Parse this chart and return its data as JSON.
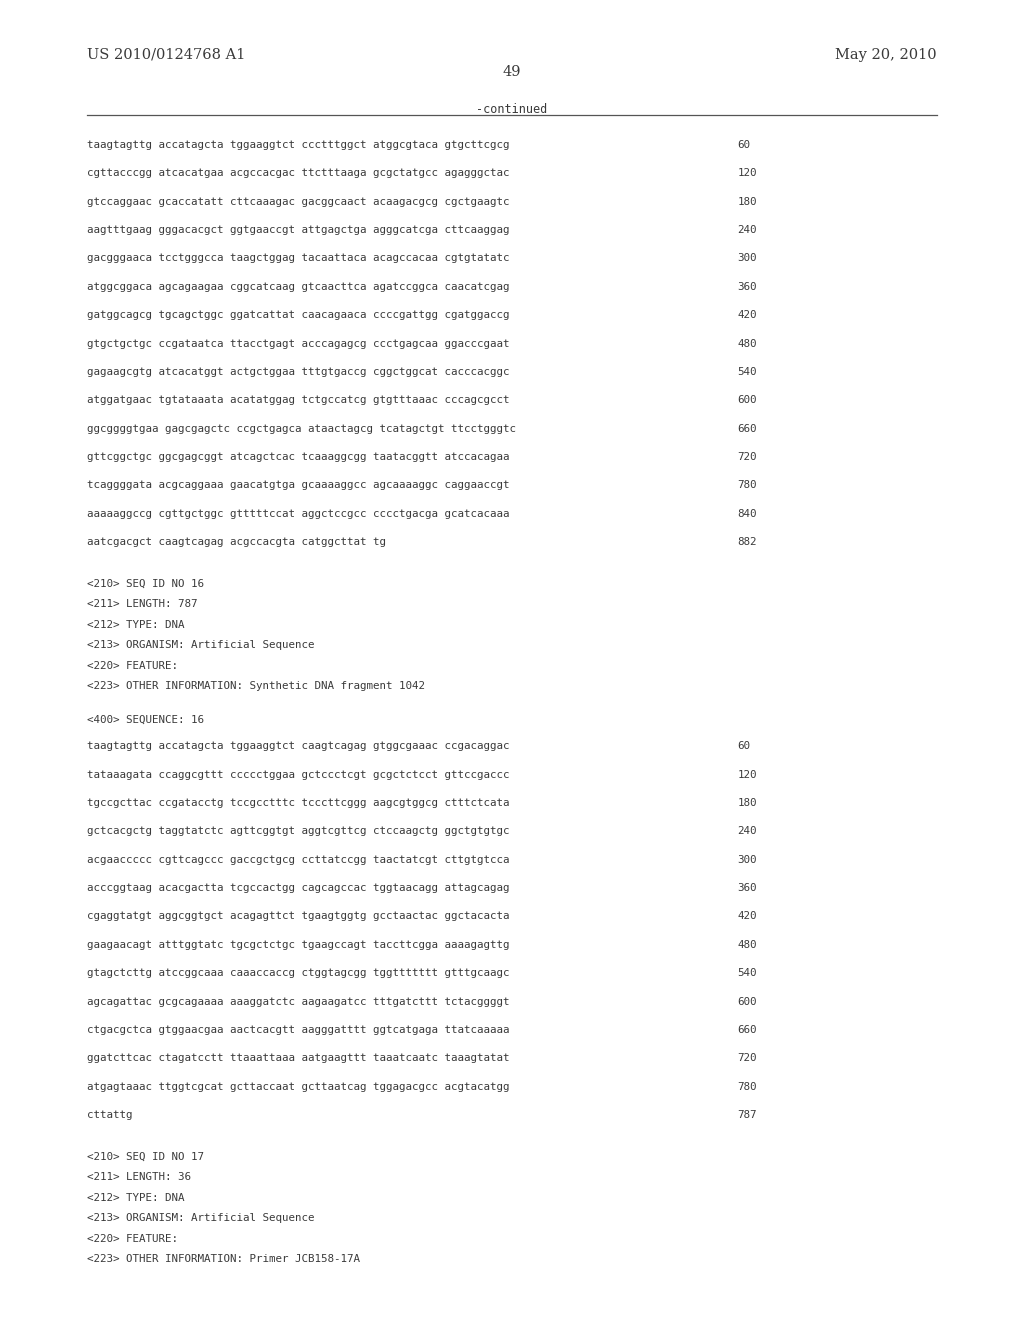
{
  "background_color": "#ffffff",
  "header_left": "US 2010/0124768 A1",
  "header_right": "May 20, 2010",
  "page_number": "49",
  "continued_text": "-continued",
  "monospace_lines_block1": [
    {
      "text": "taagtagttg accatagcta tggaaggtct ccctttggct atggcgtaca gtgcttcgcg",
      "num": "60"
    },
    {
      "text": "cgttacccgg atcacatgaa acgccacgac ttctttaaga gcgctatgcc agagggctac",
      "num": "120"
    },
    {
      "text": "gtccaggaac gcaccatatt cttcaaagac gacggcaact acaagacgcg cgctgaagtc",
      "num": "180"
    },
    {
      "text": "aagtttgaag gggacacgct ggtgaaccgt attgagctga agggcatcga cttcaaggag",
      "num": "240"
    },
    {
      "text": "gacgggaaca tcctgggcca taagctggag tacaattaca acagccacaa cgtgtatatc",
      "num": "300"
    },
    {
      "text": "atggcggaca agcagaagaa cggcatcaag gtcaacttca agatccggca caacatcgag",
      "num": "360"
    },
    {
      "text": "gatggcagcg tgcagctggc ggatcattat caacagaaca ccccgattgg cgatggaccg",
      "num": "420"
    },
    {
      "text": "gtgctgctgc ccgataatca ttacctgagt acccagagcg ccctgagcaa ggacccgaat",
      "num": "480"
    },
    {
      "text": "gagaagcgtg atcacatggt actgctggaa tttgtgaccg cggctggcat cacccacggc",
      "num": "540"
    },
    {
      "text": "atggatgaac tgtataaata acatatggag tctgccatcg gtgtttaaac cccagcgcct",
      "num": "600"
    },
    {
      "text": "ggcggggtgaa gagcgagctc ccgctgagca ataactagcg tcatagctgt ttcctgggtc",
      "num": "660"
    },
    {
      "text": "gttcggctgc ggcgagcggt atcagctcac tcaaaggcgg taatacggtt atccacagaa",
      "num": "720"
    },
    {
      "text": "tcaggggata acgcaggaaa gaacatgtga gcaaaaggcc agcaaaaggc caggaaccgt",
      "num": "780"
    },
    {
      "text": "aaaaaggccg cgttgctggc gtttttccat aggctccgcc cccctgacga gcatcacaaa",
      "num": "840"
    },
    {
      "text": "aatcgacgct caagtcagag acgccacgta catggcttat tg",
      "num": "882"
    }
  ],
  "metadata_block_1": [
    "<210> SEQ ID NO 16",
    "<211> LENGTH: 787",
    "<212> TYPE: DNA",
    "<213> ORGANISM: Artificial Sequence",
    "<220> FEATURE:",
    "<223> OTHER INFORMATION: Synthetic DNA fragment 1042"
  ],
  "seq400_1": "<400> SEQUENCE: 16",
  "monospace_lines_block2": [
    {
      "text": "taagtagttg accatagcta tggaaggtct caagtcagag gtggcgaaac ccgacaggac",
      "num": "60"
    },
    {
      "text": "tataaagata ccaggcgttt ccccctggaa gctccctcgt gcgctctcct gttccgaccc",
      "num": "120"
    },
    {
      "text": "tgccgcttac ccgatacctg tccgcctttc tcccttcggg aagcgtggcg ctttctcata",
      "num": "180"
    },
    {
      "text": "gctcacgctg taggtatctc agttcggtgt aggtcgttcg ctccaagctg ggctgtgtgc",
      "num": "240"
    },
    {
      "text": "acgaaccccc cgttcagccc gaccgctgcg ccttatccgg taactatcgt cttgtgtcca",
      "num": "300"
    },
    {
      "text": "acccggtaag acacgactta tcgccactgg cagcagccac tggtaacagg attagcagag",
      "num": "360"
    },
    {
      "text": "cgaggtatgt aggcggtgct acagagttct tgaagtggtg gcctaactac ggctacacta",
      "num": "420"
    },
    {
      "text": "gaagaacagt atttggtatc tgcgctctgc tgaagccagt taccttcgga aaaagagttg",
      "num": "480"
    },
    {
      "text": "gtagctcttg atccggcaaa caaaccaccg ctggtagcgg tggttttttt gtttgcaagc",
      "num": "540"
    },
    {
      "text": "agcagattac gcgcagaaaa aaaggatctc aagaagatcc tttgatcttt tctacggggt",
      "num": "600"
    },
    {
      "text": "ctgacgctca gtggaacgaa aactcacgtt aagggatttt ggtcatgaga ttatcaaaaa",
      "num": "660"
    },
    {
      "text": "ggatcttcac ctagatcctt ttaaattaaa aatgaagttt taaatcaatc taaagtatat",
      "num": "720"
    },
    {
      "text": "atgagtaaac ttggtcgcat gcttaccaat gcttaatcag tggagacgcc acgtacatgg",
      "num": "780"
    },
    {
      "text": "cttattg",
      "num": "787"
    }
  ],
  "metadata_block_2": [
    "<210> SEQ ID NO 17",
    "<211> LENGTH: 36",
    "<212> TYPE: DNA",
    "<213> ORGANISM: Artificial Sequence",
    "<220> FEATURE:",
    "<223> OTHER INFORMATION: Primer JCB158-17A"
  ]
}
